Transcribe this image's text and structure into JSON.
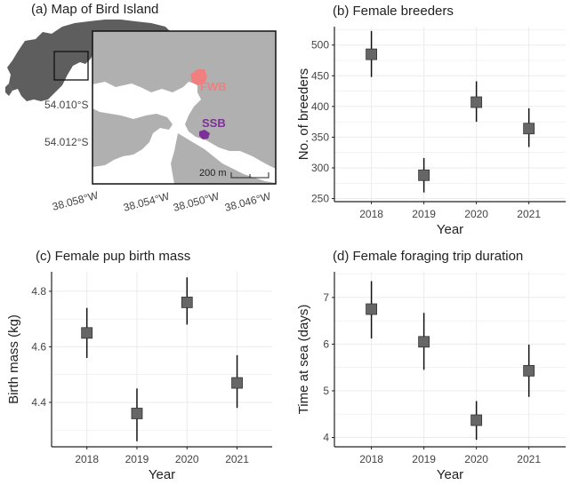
{
  "colors": {
    "marker": "#666666",
    "errorbar": "#111111",
    "grid": "#ebebeb",
    "axis": "#222222",
    "tick_label": "#444444",
    "ocean": "#ffffff",
    "land_overview": "#5e5e5e",
    "land_inset": "#b0b0b0",
    "fwb": "#f08080",
    "ssb": "#7b3294"
  },
  "map_panel": {
    "title": "(a) Map of Bird Island",
    "lat_labels": [
      "54.010°S",
      "54.012°S"
    ],
    "lon_labels": [
      "38.058°W",
      "38.054°W",
      "38.050°W",
      "38.046°W"
    ],
    "site_labels": [
      "FWB",
      "SSB"
    ],
    "scale_label": "200 m"
  },
  "chart_data": [
    {
      "id": "b",
      "type": "scatter",
      "title": "(b) Female breeders",
      "xlabel": "Year",
      "ylabel": "No. of breeders",
      "categories": [
        "2018",
        "2019",
        "2020",
        "2021"
      ],
      "values": [
        485,
        288,
        407,
        364
      ],
      "lower": [
        448,
        260,
        375,
        334
      ],
      "upper": [
        523,
        316,
        441,
        397
      ],
      "ylim": [
        245,
        530
      ],
      "yticks": [
        250,
        300,
        350,
        400,
        450,
        500
      ],
      "ytick_labels": [
        "250",
        "300",
        "350",
        "400",
        "450",
        "500"
      ]
    },
    {
      "id": "c",
      "type": "scatter",
      "title": "(c) Female pup birth mass",
      "xlabel": "Year",
      "ylabel": "Birth mass (kg)",
      "categories": [
        "2018",
        "2019",
        "2020",
        "2021"
      ],
      "values": [
        4.65,
        4.36,
        4.76,
        4.47
      ],
      "lower": [
        4.56,
        4.26,
        4.68,
        4.38
      ],
      "upper": [
        4.74,
        4.45,
        4.85,
        4.57
      ],
      "ylim": [
        4.24,
        4.87
      ],
      "yticks": [
        4.4,
        4.6,
        4.8
      ],
      "ytick_labels": [
        "4.4",
        "4.6",
        "4.8"
      ]
    },
    {
      "id": "d",
      "type": "scatter",
      "title": "(d) Female foraging trip duration",
      "xlabel": "Year",
      "ylabel": "Time at sea (days)",
      "categories": [
        "2018",
        "2019",
        "2020",
        "2021"
      ],
      "values": [
        6.75,
        6.05,
        4.37,
        5.43
      ],
      "lower": [
        6.12,
        5.45,
        3.95,
        4.87
      ],
      "upper": [
        7.35,
        6.67,
        4.78,
        5.99
      ],
      "ylim": [
        3.8,
        7.55
      ],
      "yticks": [
        4,
        5,
        6,
        7
      ],
      "ytick_labels": [
        "4",
        "5",
        "6",
        "7"
      ]
    }
  ]
}
